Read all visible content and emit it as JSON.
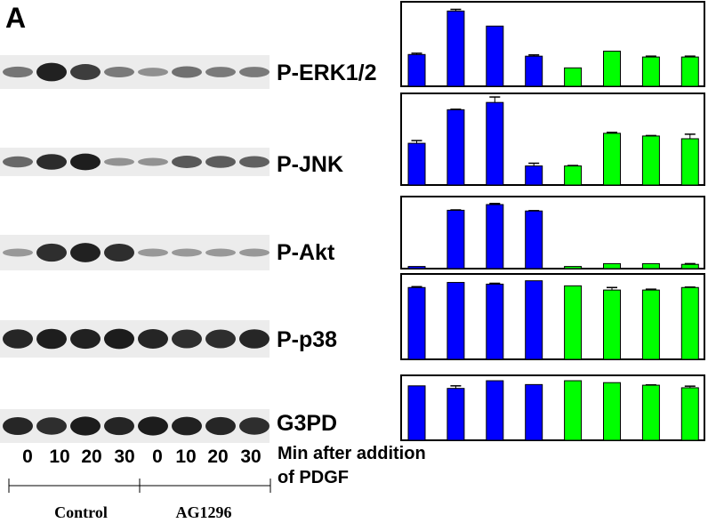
{
  "figure": {
    "panel_letter": "A"
  },
  "blot": {
    "time_points": [
      "0",
      "10",
      "20",
      "30",
      "0",
      "10",
      "20",
      "30"
    ],
    "x_caption_line1": "Min after addition",
    "x_caption_line2": "of PDGF",
    "groups": [
      {
        "name": "Control",
        "lanes": 4
      },
      {
        "name": "AG1296",
        "lanes": 4
      }
    ],
    "band_color": "#111111",
    "film_color": "#ececec"
  },
  "colors": {
    "control": "#0000ff",
    "ag1296": "#00ff00",
    "axis": "#000000",
    "error_bar": "#000000"
  },
  "chart_data": [
    {
      "type": "bar",
      "title": "P-ERK1/2",
      "categories": [
        "0",
        "10",
        "20",
        "30",
        "0",
        "10",
        "20",
        "30"
      ],
      "series": [
        {
          "name": "Control",
          "values": [
            38,
            90,
            72,
            36,
            null,
            null,
            null,
            null
          ]
        },
        {
          "name": "AG1296",
          "values": [
            null,
            null,
            null,
            null,
            22,
            42,
            35,
            35
          ]
        }
      ],
      "errors": [
        1.5,
        2,
        0,
        1.5,
        0,
        0,
        1,
        1
      ],
      "ylim": [
        0,
        100
      ],
      "grid": false,
      "legend": "none"
    },
    {
      "type": "bar",
      "title": "P-JNK",
      "categories": [
        "0",
        "10",
        "20",
        "30",
        "0",
        "10",
        "20",
        "30"
      ],
      "series": [
        {
          "name": "Control",
          "values": [
            46,
            83,
            91,
            21,
            null,
            null,
            null,
            null
          ]
        },
        {
          "name": "AG1296",
          "values": [
            null,
            null,
            null,
            null,
            21,
            57,
            54,
            51
          ]
        }
      ],
      "errors": [
        3,
        0.5,
        6,
        3,
        0.5,
        1,
        0.5,
        5
      ],
      "ylim": [
        0,
        100
      ],
      "grid": false,
      "legend": "none"
    },
    {
      "type": "bar",
      "title": "P-Akt",
      "categories": [
        "0",
        "10",
        "20",
        "30",
        "0",
        "10",
        "20",
        "30"
      ],
      "series": [
        {
          "name": "Control",
          "values": [
            3,
            82,
            90,
            81,
            null,
            null,
            null,
            null
          ]
        },
        {
          "name": "AG1296",
          "values": [
            null,
            null,
            null,
            null,
            3,
            7,
            7,
            6
          ]
        }
      ],
      "errors": [
        0,
        0.5,
        1.5,
        0.5,
        0,
        0,
        0,
        1
      ],
      "ylim": [
        0,
        100
      ],
      "grid": false,
      "legend": "none"
    },
    {
      "type": "bar",
      "title": "P-p38",
      "categories": [
        "0",
        "10",
        "20",
        "30",
        "0",
        "10",
        "20",
        "30"
      ],
      "series": [
        {
          "name": "Control",
          "values": [
            85,
            91,
            89,
            93,
            null,
            null,
            null,
            null
          ]
        },
        {
          "name": "AG1296",
          "values": [
            null,
            null,
            null,
            null,
            87,
            82,
            82,
            85
          ]
        }
      ],
      "errors": [
        1,
        0,
        1,
        0,
        0,
        3,
        1,
        0.5
      ],
      "ylim": [
        0,
        100
      ],
      "grid": false,
      "legend": "none"
    },
    {
      "type": "bar",
      "title": "G3PD",
      "categories": [
        "0",
        "10",
        "20",
        "30",
        "0",
        "10",
        "20",
        "30"
      ],
      "series": [
        {
          "name": "Control",
          "values": [
            85,
            81,
            93,
            87,
            null,
            null,
            null,
            null
          ]
        },
        {
          "name": "AG1296",
          "values": [
            null,
            null,
            null,
            null,
            93,
            90,
            86,
            82
          ]
        }
      ],
      "errors": [
        0,
        4,
        0,
        0,
        0,
        0,
        0.5,
        2.5
      ],
      "ylim": [
        0,
        100
      ],
      "grid": false,
      "legend": "none"
    }
  ]
}
